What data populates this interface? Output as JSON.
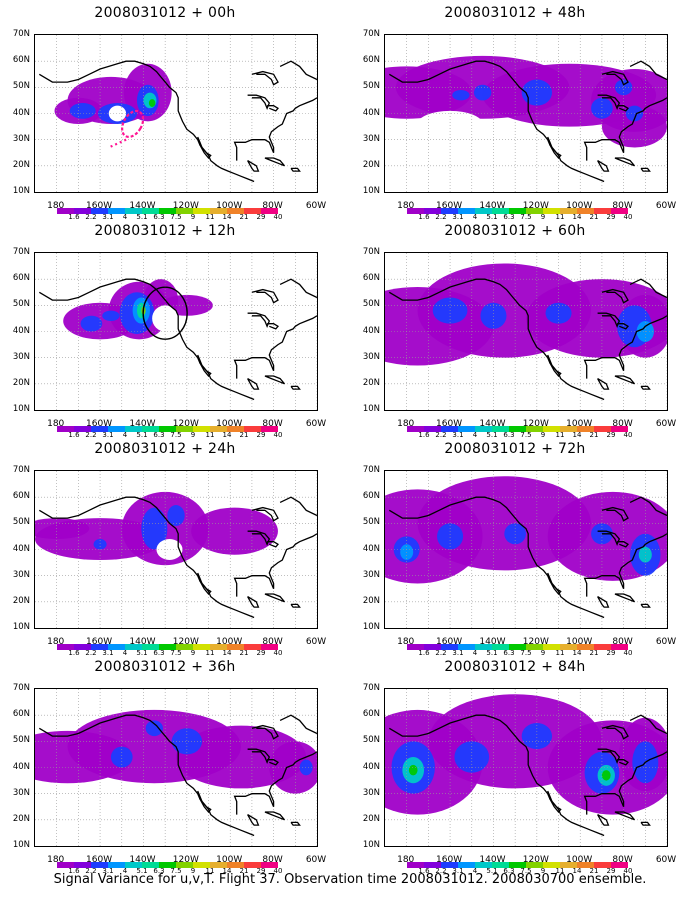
{
  "colorbar": {
    "colors": [
      "#a000c8",
      "#8200dc",
      "#1e3cff",
      "#0096ff",
      "#00c8c8",
      "#00dc96",
      "#00c800",
      "#82d200",
      "#d2e100",
      "#e6af2d",
      "#f08228",
      "#fa3c3c",
      "#f00082"
    ],
    "labels": [
      "1.6",
      "2.2",
      "3.1",
      "4",
      "5.1",
      "6.3",
      "7.5",
      "9",
      "11",
      "14",
      "21",
      "29",
      "40"
    ]
  },
  "axes": {
    "lon_labels": [
      "180",
      "160W",
      "140W",
      "120W",
      "100W",
      "80W",
      "60W"
    ],
    "lat_labels": [
      "70N",
      "60N",
      "50N",
      "40N",
      "30N",
      "20N",
      "10N"
    ]
  },
  "panels": [
    {
      "title": "2008031012 + 00h",
      "forecast_hour": 0
    },
    {
      "title": "2008031012 + 48h",
      "forecast_hour": 48
    },
    {
      "title": "2008031012 + 12h",
      "forecast_hour": 12
    },
    {
      "title": "2008031012 + 60h",
      "forecast_hour": 60
    },
    {
      "title": "2008031012 + 24h",
      "forecast_hour": 24
    },
    {
      "title": "2008031012 + 72h",
      "forecast_hour": 72
    },
    {
      "title": "2008031012 + 36h",
      "forecast_hour": 36
    },
    {
      "title": "2008031012 + 84h",
      "forecast_hour": 84
    }
  ],
  "map": {
    "lon_range": [
      "170E",
      "60W"
    ],
    "lat_range": [
      "10N",
      "70N"
    ],
    "grid": "dotted"
  },
  "caption": "Signal Variance for u,v,T. Flight 37. Observation time 2008031012. 2008030700 ensemble."
}
